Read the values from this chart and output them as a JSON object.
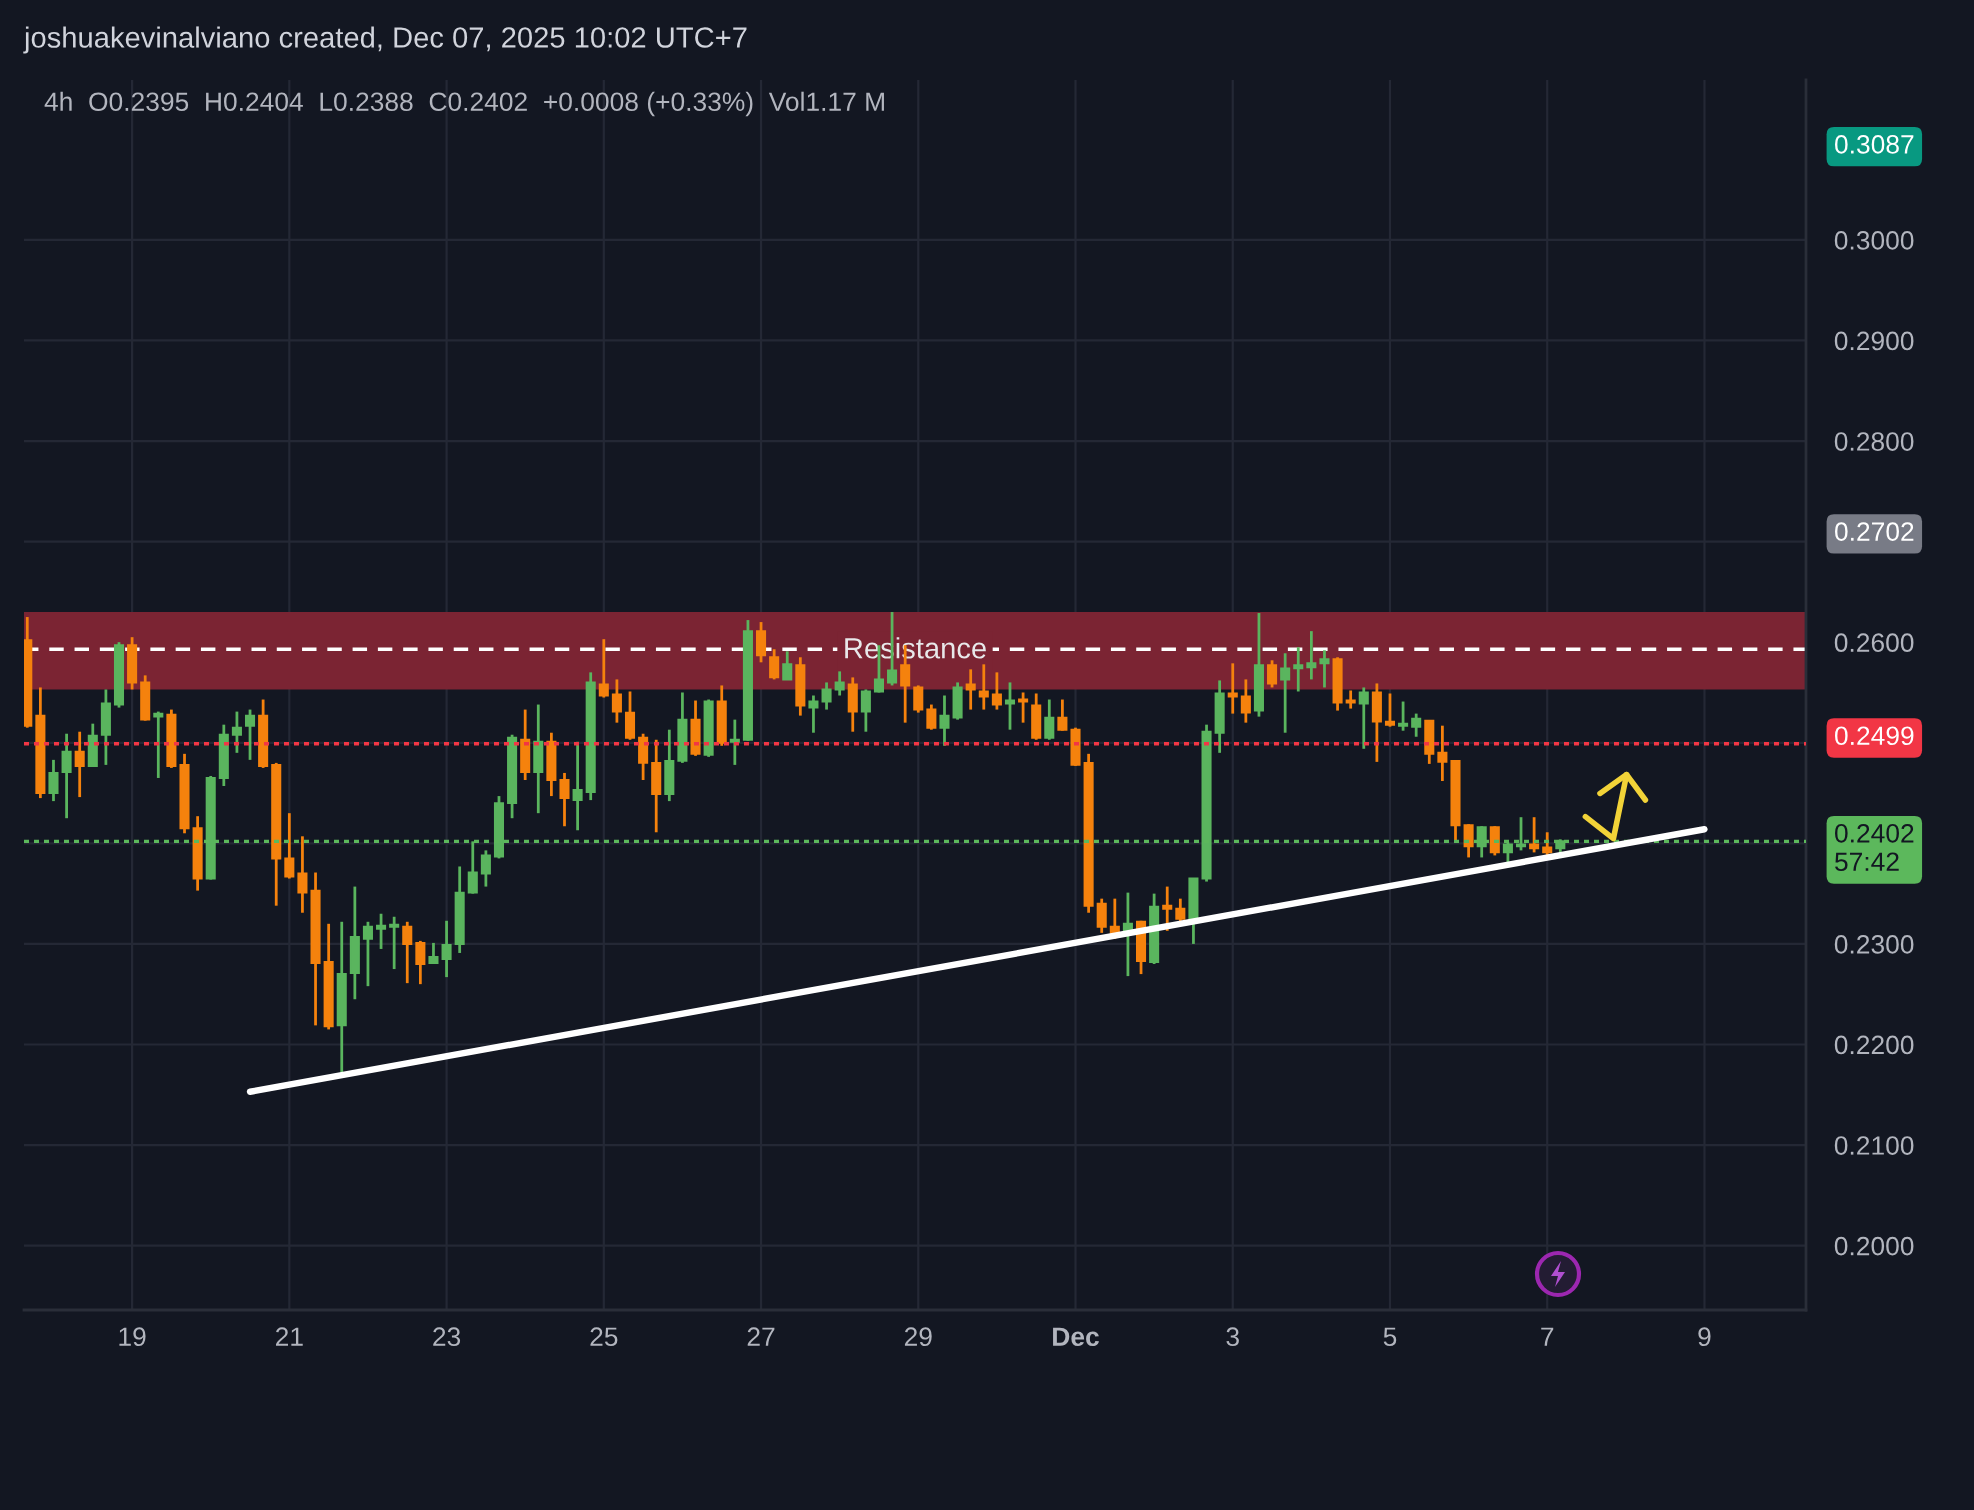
{
  "chart_data": {
    "type": "candlestick",
    "title": "joshuakevinalviano created, Dec 07, 2025 10:02 UTC+7",
    "subtitle": "4h  O0.2395  H0.2404  L0.2388  C0.2402  +0.0008 (+0.33%)  Vol1.17 M",
    "series": [
      {
        "x": [
          "2025-11-17T16:00",
          "2025-11-17T20:00",
          "2025-11-18T00:00",
          "2025-11-18T04:00",
          "2025-11-18T08:00",
          "2025-11-18T12:00",
          "2025-11-18T16:00",
          "2025-11-18T20:00",
          "2025-11-19T00:00",
          "2025-11-19T04:00",
          "2025-11-19T08:00",
          "2025-11-19T12:00",
          "2025-11-19T16:00",
          "2025-11-19T20:00",
          "2025-11-20T00:00",
          "2025-11-20T04:00",
          "2025-11-20T08:00",
          "2025-11-20T12:00",
          "2025-11-20T16:00",
          "2025-11-20T20:00",
          "2025-11-21T00:00",
          "2025-11-21T04:00",
          "2025-11-21T08:00",
          "2025-11-21T12:00",
          "2025-11-21T16:00",
          "2025-11-21T20:00",
          "2025-11-22T00:00",
          "2025-11-22T04:00",
          "2025-11-22T08:00",
          "2025-11-22T12:00",
          "2025-11-22T16:00",
          "2025-11-22T20:00",
          "2025-11-23T00:00",
          "2025-11-23T04:00",
          "2025-11-23T08:00",
          "2025-11-23T12:00",
          "2025-11-23T16:00",
          "2025-11-23T20:00",
          "2025-11-24T00:00",
          "2025-11-24T04:00",
          "2025-11-24T08:00",
          "2025-11-24T12:00",
          "2025-11-24T16:00",
          "2025-11-24T20:00",
          "2025-11-25T00:00",
          "2025-11-25T04:00",
          "2025-11-25T08:00",
          "2025-11-25T12:00",
          "2025-11-25T16:00",
          "2025-11-25T20:00",
          "2025-11-26T00:00",
          "2025-11-26T04:00",
          "2025-11-26T08:00",
          "2025-11-26T12:00",
          "2025-11-26T16:00",
          "2025-11-26T20:00",
          "2025-11-27T00:00",
          "2025-11-27T04:00",
          "2025-11-27T08:00",
          "2025-11-27T12:00",
          "2025-11-27T16:00",
          "2025-11-27T20:00",
          "2025-11-28T00:00",
          "2025-11-28T04:00",
          "2025-11-28T08:00",
          "2025-11-28T12:00",
          "2025-11-28T16:00",
          "2025-11-28T20:00",
          "2025-11-29T00:00",
          "2025-11-29T04:00",
          "2025-11-29T08:00",
          "2025-11-29T12:00",
          "2025-11-29T16:00",
          "2025-11-29T20:00",
          "2025-11-30T00:00",
          "2025-11-30T04:00",
          "2025-11-30T08:00",
          "2025-11-30T12:00",
          "2025-11-30T16:00",
          "2025-11-30T20:00",
          "2025-12-01T00:00",
          "2025-12-01T04:00",
          "2025-12-01T08:00",
          "2025-12-01T12:00",
          "2025-12-01T16:00",
          "2025-12-01T20:00",
          "2025-12-02T00:00",
          "2025-12-02T04:00",
          "2025-12-02T08:00",
          "2025-12-02T12:00",
          "2025-12-02T16:00",
          "2025-12-02T20:00",
          "2025-12-03T00:00",
          "2025-12-03T04:00",
          "2025-12-03T08:00",
          "2025-12-03T12:00",
          "2025-12-03T16:00",
          "2025-12-03T20:00",
          "2025-12-04T00:00",
          "2025-12-04T04:00",
          "2025-12-04T08:00",
          "2025-12-04T12:00",
          "2025-12-04T16:00",
          "2025-12-04T20:00",
          "2025-12-05T00:00",
          "2025-12-05T04:00",
          "2025-12-05T08:00",
          "2025-12-05T12:00",
          "2025-12-05T16:00",
          "2025-12-05T20:00",
          "2025-12-06T00:00",
          "2025-12-06T04:00",
          "2025-12-06T08:00",
          "2025-12-06T12:00",
          "2025-12-06T16:00",
          "2025-12-06T20:00",
          "2025-12-07T00:00",
          "2025-12-07T04:00"
        ],
        "ohlc": [
          [
            0.2602,
            0.2625,
            0.2515,
            0.2517
          ],
          [
            0.2527,
            0.2555,
            0.2445,
            0.245
          ],
          [
            0.245,
            0.2483,
            0.2442,
            0.247
          ],
          [
            0.2471,
            0.2509,
            0.2425,
            0.2491
          ],
          [
            0.2491,
            0.2511,
            0.2446,
            0.2477
          ],
          [
            0.2477,
            0.2519,
            0.2477,
            0.2507
          ],
          [
            0.2508,
            0.2553,
            0.2478,
            0.2539
          ],
          [
            0.2538,
            0.26,
            0.2535,
            0.2597
          ],
          [
            0.2597,
            0.2605,
            0.2553,
            0.256
          ],
          [
            0.256,
            0.2567,
            0.2522,
            0.2523
          ],
          [
            0.2526,
            0.2531,
            0.2465,
            0.2529
          ],
          [
            0.2528,
            0.2533,
            0.2475,
            0.2477
          ],
          [
            0.2478,
            0.2489,
            0.241,
            0.2415
          ],
          [
            0.2415,
            0.2427,
            0.2353,
            0.2365
          ],
          [
            0.2365,
            0.2467,
            0.2364,
            0.2465
          ],
          [
            0.2465,
            0.2518,
            0.2457,
            0.2508
          ],
          [
            0.2508,
            0.2531,
            0.249,
            0.2515
          ],
          [
            0.2517,
            0.2533,
            0.2483,
            0.2527
          ],
          [
            0.2527,
            0.2543,
            0.2475,
            0.2477
          ],
          [
            0.2478,
            0.248,
            0.2338,
            0.2385
          ],
          [
            0.2385,
            0.243,
            0.2365,
            0.2367
          ],
          [
            0.237,
            0.2407,
            0.2331,
            0.2351
          ],
          [
            0.2353,
            0.2371,
            0.2219,
            0.2281
          ],
          [
            0.2282,
            0.232,
            0.2215,
            0.2218
          ],
          [
            0.2219,
            0.2322,
            0.2171,
            0.227
          ],
          [
            0.2271,
            0.2357,
            0.2245,
            0.2307
          ],
          [
            0.2305,
            0.2322,
            0.2258,
            0.2317
          ],
          [
            0.2315,
            0.233,
            0.2295,
            0.2318
          ],
          [
            0.2317,
            0.2327,
            0.2275,
            0.2319
          ],
          [
            0.2317,
            0.2322,
            0.2261,
            0.23
          ],
          [
            0.2301,
            0.2303,
            0.226,
            0.228
          ],
          [
            0.2281,
            0.2301,
            0.2281,
            0.2287
          ],
          [
            0.2285,
            0.2323,
            0.2267,
            0.2299
          ],
          [
            0.23,
            0.2377,
            0.2291,
            0.2351
          ],
          [
            0.2351,
            0.2402,
            0.235,
            0.2371
          ],
          [
            0.237,
            0.2393,
            0.2357,
            0.2388
          ],
          [
            0.2387,
            0.2447,
            0.2385,
            0.244
          ],
          [
            0.244,
            0.2508,
            0.2425,
            0.2505
          ],
          [
            0.2503,
            0.2533,
            0.2463,
            0.2471
          ],
          [
            0.2471,
            0.2538,
            0.243,
            0.2501
          ],
          [
            0.2501,
            0.251,
            0.2447,
            0.2463
          ],
          [
            0.2463,
            0.247,
            0.2417,
            0.2445
          ],
          [
            0.2443,
            0.2501,
            0.2413,
            0.2453
          ],
          [
            0.2451,
            0.257,
            0.2443,
            0.256
          ],
          [
            0.2558,
            0.2603,
            0.2545,
            0.2547
          ],
          [
            0.2548,
            0.2563,
            0.252,
            0.2531
          ],
          [
            0.253,
            0.2551,
            0.2503,
            0.2505
          ],
          [
            0.2505,
            0.2509,
            0.2463,
            0.248
          ],
          [
            0.248,
            0.2503,
            0.2411,
            0.2449
          ],
          [
            0.2449,
            0.2513,
            0.2442,
            0.2482
          ],
          [
            0.2482,
            0.255,
            0.248,
            0.2523
          ],
          [
            0.2523,
            0.2542,
            0.2487,
            0.2489
          ],
          [
            0.2488,
            0.2543,
            0.2486,
            0.2541
          ],
          [
            0.2541,
            0.2557,
            0.2497,
            0.25
          ],
          [
            0.2501,
            0.2523,
            0.2478,
            0.2503
          ],
          [
            0.2503,
            0.2622,
            0.2502,
            0.2611
          ],
          [
            0.2611,
            0.262,
            0.258,
            0.2587
          ],
          [
            0.2585,
            0.2593,
            0.2563,
            0.2565
          ],
          [
            0.2563,
            0.2591,
            0.2563,
            0.2578
          ],
          [
            0.2577,
            0.2585,
            0.2527,
            0.2537
          ],
          [
            0.2535,
            0.2547,
            0.251,
            0.2541
          ],
          [
            0.2541,
            0.256,
            0.2533,
            0.2553
          ],
          [
            0.2553,
            0.2571,
            0.2547,
            0.256
          ],
          [
            0.2558,
            0.2565,
            0.2511,
            0.2531
          ],
          [
            0.2531,
            0.2553,
            0.2511,
            0.2551
          ],
          [
            0.2551,
            0.2597,
            0.255,
            0.2563
          ],
          [
            0.256,
            0.263,
            0.2557,
            0.2572
          ],
          [
            0.2577,
            0.2597,
            0.252,
            0.2557
          ],
          [
            0.2555,
            0.2557,
            0.253,
            0.2533
          ],
          [
            0.2533,
            0.2538,
            0.2513,
            0.2515
          ],
          [
            0.2515,
            0.2547,
            0.2497,
            0.2527
          ],
          [
            0.2525,
            0.256,
            0.2523,
            0.2555
          ],
          [
            0.2558,
            0.2573,
            0.2533,
            0.2553
          ],
          [
            0.2551,
            0.2578,
            0.2533,
            0.2546
          ],
          [
            0.2548,
            0.257,
            0.2533,
            0.2538
          ],
          [
            0.2539,
            0.256,
            0.2513,
            0.2542
          ],
          [
            0.2543,
            0.255,
            0.252,
            0.2541
          ],
          [
            0.2537,
            0.2549,
            0.2503,
            0.2505
          ],
          [
            0.2505,
            0.2543,
            0.2503,
            0.2525
          ],
          [
            0.2525,
            0.2543,
            0.2512,
            0.2513
          ],
          [
            0.2513,
            0.2515,
            0.2477,
            0.2478
          ],
          [
            0.248,
            0.2489,
            0.2331,
            0.2338
          ],
          [
            0.234,
            0.2345,
            0.2311,
            0.2317
          ],
          [
            0.2317,
            0.2345,
            0.2305,
            0.231
          ],
          [
            0.231,
            0.2351,
            0.2268,
            0.232
          ],
          [
            0.2322,
            0.2323,
            0.227,
            0.2283
          ],
          [
            0.2282,
            0.235,
            0.228,
            0.2337
          ],
          [
            0.2338,
            0.2357,
            0.2313,
            0.2335
          ],
          [
            0.2335,
            0.2345,
            0.2322,
            0.2325
          ],
          [
            0.2323,
            0.2365,
            0.23,
            0.2365
          ],
          [
            0.2365,
            0.2518,
            0.2362,
            0.2511
          ],
          [
            0.251,
            0.2562,
            0.249,
            0.2549
          ],
          [
            0.2549,
            0.2579,
            0.2529,
            0.2546
          ],
          [
            0.2546,
            0.2563,
            0.252,
            0.253
          ],
          [
            0.2532,
            0.2629,
            0.2526,
            0.2577
          ],
          [
            0.2577,
            0.2582,
            0.2555,
            0.2559
          ],
          [
            0.2563,
            0.2589,
            0.251,
            0.2574
          ],
          [
            0.2574,
            0.2595,
            0.2551,
            0.2577
          ],
          [
            0.2575,
            0.2611,
            0.2563,
            0.2579
          ],
          [
            0.2579,
            0.2592,
            0.2555,
            0.2583
          ],
          [
            0.2583,
            0.2585,
            0.2532,
            0.254
          ],
          [
            0.2542,
            0.2552,
            0.2534,
            0.254
          ],
          [
            0.2539,
            0.2555,
            0.2494,
            0.255
          ],
          [
            0.255,
            0.2559,
            0.2481,
            0.2521
          ],
          [
            0.2521,
            0.2549,
            0.2516,
            0.2518
          ],
          [
            0.2517,
            0.2541,
            0.2512,
            0.2519
          ],
          [
            0.2516,
            0.2529,
            0.2506,
            0.2524
          ],
          [
            0.2522,
            0.2522,
            0.2479,
            0.2489
          ],
          [
            0.249,
            0.2517,
            0.2462,
            0.2481
          ],
          [
            0.2482,
            0.2482,
            0.2401,
            0.2418
          ],
          [
            0.2418,
            0.2419,
            0.2386,
            0.2397
          ],
          [
            0.2397,
            0.2417,
            0.2386,
            0.2416
          ],
          [
            0.2416,
            0.2417,
            0.2388,
            0.2391
          ],
          [
            0.2391,
            0.2401,
            0.2379,
            0.2399
          ],
          [
            0.2397,
            0.2426,
            0.2393,
            0.2399
          ],
          [
            0.2399,
            0.2426,
            0.2391,
            0.2395
          ],
          [
            0.2396,
            0.2411,
            0.2387,
            0.2391
          ],
          [
            0.2395,
            0.2404,
            0.2388,
            0.2402
          ]
        ],
        "colors": [
          "#f5820d",
          "#f5820d",
          "#5ab55e",
          "#5ab55e",
          "#f5820d",
          "#5ab55e",
          "#5ab55e",
          "#5ab55e",
          "#f5820d",
          "#f5820d",
          "#5ab55e",
          "#f5820d",
          "#f5820d",
          "#f5820d",
          "#5ab55e",
          "#5ab55e",
          "#5ab55e",
          "#5ab55e",
          "#f5820d",
          "#f5820d",
          "#f5820d",
          "#f5820d",
          "#f5820d",
          "#f5820d",
          "#5ab55e",
          "#5ab55e",
          "#5ab55e",
          "#5ab55e",
          "#5ab55e",
          "#f5820d",
          "#f5820d",
          "#5ab55e",
          "#5ab55e",
          "#5ab55e",
          "#5ab55e",
          "#5ab55e",
          "#5ab55e",
          "#5ab55e",
          "#f5820d",
          "#5ab55e",
          "#f5820d",
          "#f5820d",
          "#5ab55e",
          "#5ab55e",
          "#f5820d",
          "#f5820d",
          "#f5820d",
          "#f5820d",
          "#f5820d",
          "#5ab55e",
          "#5ab55e",
          "#f5820d",
          "#5ab55e",
          "#f5820d",
          "#5ab55e",
          "#5ab55e",
          "#f5820d",
          "#f5820d",
          "#5ab55e",
          "#f5820d",
          "#5ab55e",
          "#5ab55e",
          "#5ab55e",
          "#f5820d",
          "#5ab55e",
          "#5ab55e",
          "#5ab55e",
          "#f5820d",
          "#f5820d",
          "#f5820d",
          "#5ab55e",
          "#5ab55e",
          "#f5820d",
          "#f5820d",
          "#f5820d",
          "#5ab55e",
          "#f5820d",
          "#f5820d",
          "#5ab55e",
          "#f5820d",
          "#f5820d",
          "#f5820d",
          "#f5820d",
          "#f5820d",
          "#5ab55e",
          "#f5820d",
          "#5ab55e",
          "#f5820d",
          "#f5820d",
          "#5ab55e",
          "#5ab55e",
          "#5ab55e",
          "#f5820d",
          "#f5820d",
          "#5ab55e",
          "#f5820d",
          "#5ab55e",
          "#5ab55e",
          "#5ab55e",
          "#5ab55e",
          "#f5820d",
          "#f5820d",
          "#5ab55e",
          "#f5820d",
          "#f5820d",
          "#5ab55e",
          "#5ab55e",
          "#f5820d",
          "#f5820d",
          "#f5820d",
          "#f5820d",
          "#5ab55e",
          "#f5820d",
          "#5ab55e",
          "#5ab55e",
          "#f5820d",
          "#f5820d",
          "#5ab55e"
        ]
      },
      {
        "type": "line",
        "x": [
          "2025-11-20T12:00",
          "2025-12-09T00:00"
        ],
        "values": [
          0.2153,
          0.2414
        ],
        "color": "#ffffff"
      }
    ],
    "xlim": [
      "2025-11-17T15:00",
      "2025-12-10T07:00"
    ],
    "xticks": [
      {
        "value": "2025-11-19",
        "label": "19"
      },
      {
        "value": "2025-11-21",
        "label": "21"
      },
      {
        "value": "2025-11-23",
        "label": "23"
      },
      {
        "value": "2025-11-25",
        "label": "25"
      },
      {
        "value": "2025-11-27",
        "label": "27"
      },
      {
        "value": "2025-11-29",
        "label": "29"
      },
      {
        "value": "2025-12-01",
        "label": "Dec"
      },
      {
        "value": "2025-12-03",
        "label": "3"
      },
      {
        "value": "2025-12-05",
        "label": "5"
      },
      {
        "value": "2025-12-07",
        "label": "7"
      },
      {
        "value": "2025-12-09",
        "label": "9"
      }
    ],
    "ylim": [
      0.1936,
      0.3159
    ],
    "yticks": [
      {
        "value": 0.2,
        "label": "0.2000"
      },
      {
        "value": 0.21,
        "label": "0.2100"
      },
      {
        "value": 0.22,
        "label": "0.2200"
      },
      {
        "value": 0.23,
        "label": "0.2300"
      },
      {
        "value": 0.24,
        "label": null
      },
      {
        "value": 0.25,
        "label": null
      },
      {
        "value": 0.26,
        "label": "0.2600"
      },
      {
        "value": 0.27,
        "label": null
      },
      {
        "value": 0.28,
        "label": "0.2800"
      },
      {
        "value": 0.29,
        "label": "0.2900"
      },
      {
        "value": 0.3,
        "label": "0.3000"
      }
    ],
    "grid": true,
    "bands": [
      {
        "axis": "y",
        "from": 0.2553,
        "to": 0.263,
        "label": "Resistance",
        "color": "#7b2433"
      }
    ],
    "ref_lines": [
      {
        "axis": "y",
        "value": 0.2593,
        "line_style": "dashed",
        "color": "#ffffff"
      },
      {
        "axis": "y",
        "value": 0.2499,
        "label": "0.2499",
        "line_style": "dotted",
        "color": "#f23645"
      },
      {
        "axis": "y",
        "value": 0.2402,
        "label": "0.2402\n57:42",
        "line_style": "dotted",
        "color": "#5cb85c"
      }
    ],
    "annotations": [
      "0.3087",
      "0.2702"
    ]
  }
}
